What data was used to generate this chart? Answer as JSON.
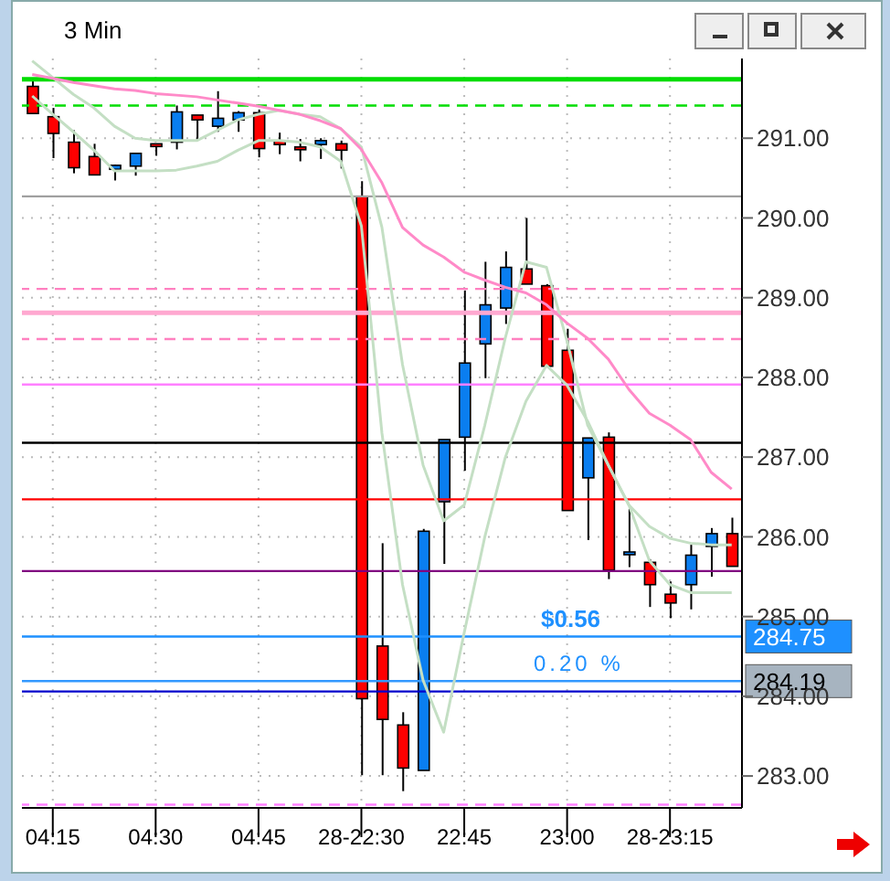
{
  "chart_data": {
    "type": "candlestick",
    "title": "3 Min",
    "categories": [
      null,
      "04:15",
      null,
      null,
      null,
      null,
      "04:30",
      null,
      null,
      null,
      null,
      "04:45",
      null,
      null,
      null,
      null,
      "28-22:30",
      null,
      null,
      null,
      null,
      "22:45",
      null,
      null,
      null,
      null,
      "23:00",
      null,
      null,
      null,
      null,
      "28-23:15",
      null,
      null,
      null
    ],
    "ohlc": [
      [
        291.65,
        291.74,
        291.31,
        291.31
      ],
      [
        291.27,
        291.38,
        290.75,
        291.06
      ],
      [
        290.95,
        291.1,
        290.56,
        290.63
      ],
      [
        290.77,
        290.93,
        290.54,
        290.54
      ],
      [
        290.61,
        290.67,
        290.47,
        290.66
      ],
      [
        290.65,
        290.81,
        290.53,
        290.81
      ],
      [
        290.93,
        290.93,
        290.78,
        290.91
      ],
      [
        290.95,
        291.41,
        290.86,
        291.33
      ],
      [
        291.29,
        291.29,
        290.98,
        291.23
      ],
      [
        291.15,
        291.59,
        291.08,
        291.25
      ],
      [
        291.23,
        291.34,
        291.08,
        291.32
      ],
      [
        291.32,
        291.36,
        290.76,
        290.87
      ],
      [
        290.97,
        291.07,
        290.8,
        290.92
      ],
      [
        290.89,
        290.99,
        290.71,
        290.87
      ],
      [
        290.92,
        291.0,
        290.74,
        290.97
      ],
      [
        290.93,
        290.97,
        290.62,
        290.85
      ],
      [
        290.27,
        290.46,
        283.01,
        283.97
      ],
      [
        284.63,
        285.92,
        283.01,
        283.71
      ],
      [
        283.64,
        283.8,
        282.81,
        283.1
      ],
      [
        283.07,
        286.1,
        283.07,
        286.07
      ],
      [
        286.44,
        287.22,
        285.66,
        287.22
      ],
      [
        287.25,
        289.09,
        286.83,
        288.18
      ],
      [
        288.42,
        289.45,
        287.99,
        288.91
      ],
      [
        288.87,
        289.58,
        288.67,
        289.38
      ],
      [
        289.36,
        290.0,
        289.17,
        289.17
      ],
      [
        289.15,
        289.17,
        288.14,
        288.14
      ],
      [
        288.34,
        288.61,
        286.33,
        286.33
      ],
      [
        286.74,
        287.24,
        285.96,
        287.24
      ],
      [
        287.25,
        287.31,
        285.47,
        285.58
      ],
      [
        285.79,
        286.35,
        285.62,
        285.81
      ],
      [
        285.68,
        285.72,
        285.12,
        285.4
      ],
      [
        285.28,
        285.44,
        284.98,
        285.17
      ],
      [
        285.4,
        285.9,
        285.09,
        285.77
      ],
      [
        285.88,
        286.11,
        285.5,
        286.04
      ],
      [
        286.04,
        286.24,
        285.63,
        285.63
      ]
    ],
    "colors": [
      "#ff0000",
      "#ff0000",
      "#ff0000",
      "#ff0000",
      "#0a7ef0",
      "#0a7ef0",
      "#ff0000",
      "#0a7ef0",
      "#ff0000",
      "#0a7ef0",
      "#0a7ef0",
      "#ff0000",
      "#ff0000",
      "#ff0000",
      "#0a7ef0",
      "#ff0000",
      "#ff0000",
      "#ff0000",
      "#ff0000",
      "#0a7ef0",
      "#0a7ef0",
      "#0a7ef0",
      "#0a7ef0",
      "#0a7ef0",
      "#ff0000",
      "#ff0000",
      "#ff0000",
      "#0a7ef0",
      "#ff0000",
      "#0a7ef0",
      "#ff0000",
      "#ff0000",
      "#0a7ef0",
      "#0a7ef0",
      "#ff0000"
    ],
    "series": [
      {
        "type": "line",
        "color": "#c4dfc4",
        "values": [
          291.97,
          291.76,
          291.55,
          291.38,
          291.15,
          291.0,
          290.97,
          290.97,
          290.97,
          291.1,
          291.23,
          291.3,
          291.35,
          291.3,
          291.27,
          291.12,
          290.89,
          289.88,
          288.16,
          286.9,
          286.2,
          286.4,
          287.4,
          288.5,
          289.45,
          289.38,
          288.45,
          287.4,
          286.9,
          286.4,
          286.13,
          285.98,
          285.92,
          285.9,
          285.9
        ]
      },
      {
        "type": "line",
        "color": "#c4dfc4",
        "values": [
          291.53,
          291.3,
          291.08,
          290.85,
          290.59,
          290.59,
          290.59,
          290.6,
          290.65,
          290.71,
          290.85,
          290.97,
          290.97,
          290.95,
          290.89,
          290.71,
          289.9,
          287.3,
          285.4,
          284.2,
          283.55,
          284.8,
          286.0,
          287.0,
          287.7,
          288.15,
          287.9,
          287.45,
          286.9,
          286.4,
          285.7,
          285.4,
          285.3,
          285.3,
          285.3
        ]
      },
      {
        "type": "line",
        "color": "#ff8ac8",
        "values": [
          291.8,
          291.75,
          291.7,
          291.66,
          291.62,
          291.6,
          291.56,
          291.54,
          291.52,
          291.48,
          291.44,
          291.4,
          291.35,
          291.3,
          291.22,
          291.12,
          290.86,
          290.44,
          289.88,
          289.66,
          289.51,
          289.32,
          289.22,
          289.13,
          289.06,
          288.91,
          288.68,
          288.49,
          288.23,
          287.85,
          287.55,
          287.4,
          287.22,
          286.81,
          286.6
        ]
      }
    ],
    "ylim": [
      282.6,
      292.0
    ],
    "yticks": [
      {
        "value": 283,
        "label": "283.00"
      },
      {
        "value": 284,
        "label": "284.00"
      },
      {
        "value": 285,
        "label": "285.00"
      },
      {
        "value": 286,
        "label": "286.00"
      },
      {
        "value": 287,
        "label": "287.00"
      },
      {
        "value": 288,
        "label": "288.00"
      },
      {
        "value": 289,
        "label": "289.00"
      },
      {
        "value": 290,
        "label": "290.00"
      },
      {
        "value": 291,
        "label": "291.00"
      }
    ],
    "ref_lines": [
      {
        "axis": "y",
        "value": 291.74,
        "color": "#00dd00",
        "line_style": "solid"
      },
      {
        "axis": "y",
        "value": 291.41,
        "color": "#00dd00",
        "line_style": "dashed"
      },
      {
        "axis": "y",
        "value": 290.27,
        "color": "#a0a0a0",
        "line_style": "solid"
      },
      {
        "axis": "y",
        "value": 289.11,
        "color": "#ff80c0",
        "line_style": "dashed"
      },
      {
        "axis": "y",
        "value": 288.81,
        "color": "#ffa8d0",
        "line_style": "solid"
      },
      {
        "axis": "y",
        "value": 288.48,
        "color": "#ff80c0",
        "line_style": "dashed"
      },
      {
        "axis": "y",
        "value": 287.91,
        "color": "#ff80ff",
        "line_style": "solid"
      },
      {
        "axis": "y",
        "value": 287.18,
        "color": "#000000",
        "line_style": "solid"
      },
      {
        "axis": "y",
        "value": 286.47,
        "color": "#ff0000",
        "line_style": "solid"
      },
      {
        "axis": "y",
        "value": 285.57,
        "color": "#800080",
        "line_style": "solid"
      },
      {
        "axis": "y",
        "value": 284.75,
        "color": "#1e90ff",
        "line_style": "solid",
        "label": "284.75"
      },
      {
        "axis": "y",
        "value": 284.19,
        "color": "#3399ff",
        "line_style": "solid",
        "label": "284.19"
      },
      {
        "axis": "y",
        "value": 284.06,
        "color": "#0000cc",
        "line_style": "solid"
      },
      {
        "axis": "y",
        "value": 282.64,
        "color": "#ff80ff",
        "line_style": "dashed"
      }
    ],
    "annotations": [
      "$0.56",
      "0.20 %"
    ],
    "grid": true
  }
}
